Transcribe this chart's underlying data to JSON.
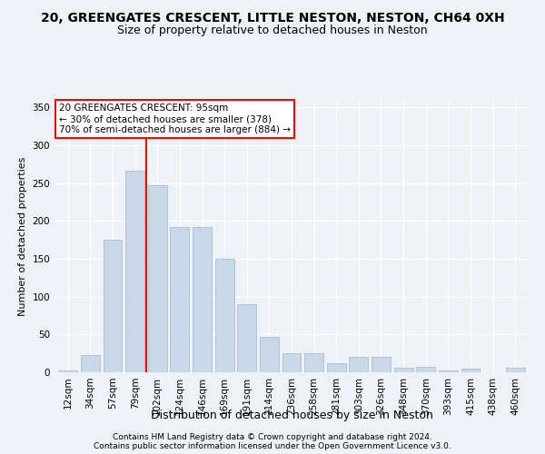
{
  "title1": "20, GREENGATES CRESCENT, LITTLE NESTON, NESTON, CH64 0XH",
  "title2": "Size of property relative to detached houses in Neston",
  "xlabel": "Distribution of detached houses by size in Neston",
  "ylabel": "Number of detached properties",
  "categories": [
    "12sqm",
    "34sqm",
    "57sqm",
    "79sqm",
    "102sqm",
    "124sqm",
    "146sqm",
    "169sqm",
    "191sqm",
    "214sqm",
    "236sqm",
    "258sqm",
    "281sqm",
    "303sqm",
    "326sqm",
    "348sqm",
    "370sqm",
    "393sqm",
    "415sqm",
    "438sqm",
    "460sqm"
  ],
  "values": [
    2,
    23,
    175,
    267,
    247,
    192,
    192,
    150,
    90,
    47,
    25,
    25,
    12,
    20,
    20,
    6,
    7,
    3,
    5,
    0,
    6
  ],
  "bar_color": "#c8d8e8",
  "bar_edge_color": "#a0b8cc",
  "annotation_text": "20 GREENGATES CRESCENT: 95sqm\n← 30% of detached houses are smaller (378)\n70% of semi-detached houses are larger (884) →",
  "annotation_box_color": "white",
  "annotation_box_edge": "red",
  "vline_color": "red",
  "vline_x": 3.5,
  "ylim": [
    0,
    360
  ],
  "yticks": [
    0,
    50,
    100,
    150,
    200,
    250,
    300,
    350
  ],
  "footer1": "Contains HM Land Registry data © Crown copyright and database right 2024.",
  "footer2": "Contains public sector information licensed under the Open Government Licence v3.0.",
  "bg_color": "#eef2f7",
  "grid_color": "#ffffff",
  "title1_fontsize": 10,
  "title2_fontsize": 9,
  "ylabel_fontsize": 8,
  "xlabel_fontsize": 9,
  "tick_fontsize": 7.5,
  "footer_fontsize": 6.5,
  "annot_fontsize": 7.5
}
